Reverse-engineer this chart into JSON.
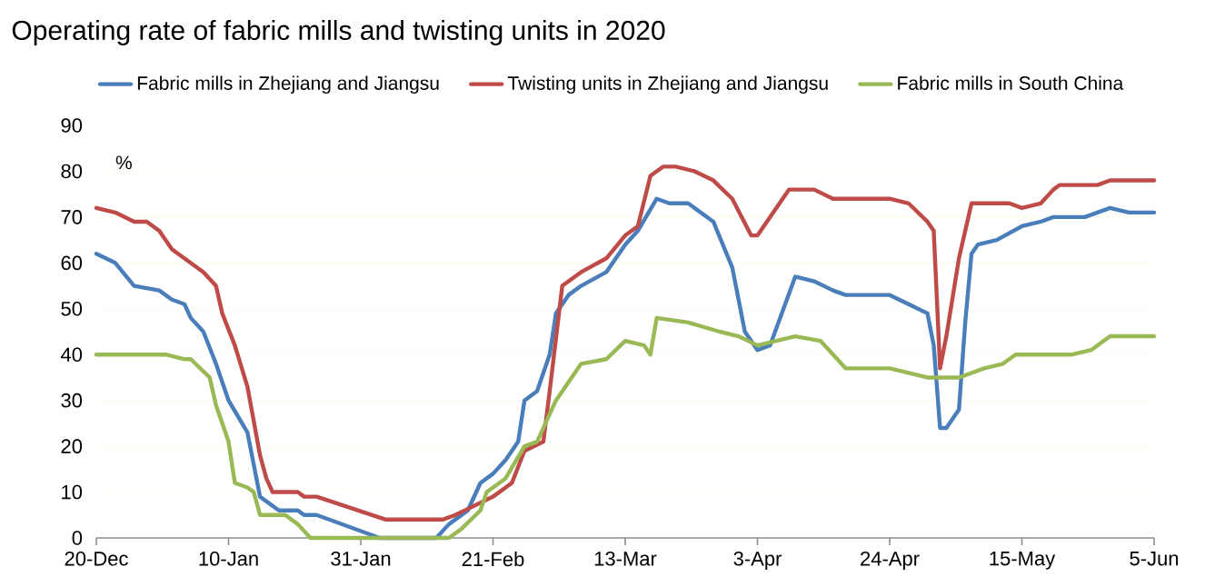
{
  "chart_data": {
    "type": "line",
    "title": "Operating rate of fabric mills and twisting units in 2020",
    "ylabel": "%",
    "grid": "y",
    "legend": "top",
    "xlim": [
      "2019-12-20",
      "2020-06-05"
    ],
    "xticks": [
      {
        "value": "2019-12-20",
        "label": "20-Dec"
      },
      {
        "value": "2020-01-10",
        "label": "10-Jan"
      },
      {
        "value": "2020-01-31",
        "label": "31-Jan"
      },
      {
        "value": "2020-02-21",
        "label": "21-Feb"
      },
      {
        "value": "2020-03-13",
        "label": "13-Mar"
      },
      {
        "value": "2020-04-03",
        "label": "3-Apr"
      },
      {
        "value": "2020-04-24",
        "label": "24-Apr"
      },
      {
        "value": "2020-05-15",
        "label": "15-May"
      },
      {
        "value": "2020-06-05",
        "label": "5-Jun"
      }
    ],
    "ylim": [
      0,
      90
    ],
    "yticks": [
      0,
      10,
      20,
      30,
      40,
      50,
      60,
      70,
      80,
      90
    ],
    "series": [
      {
        "name": "Fabric mills in Zhejiang and Jiangsu",
        "color": "#4a7ebb",
        "x": [
          "2019-12-20",
          "2019-12-23",
          "2019-12-26",
          "2019-12-30",
          "2020-01-01",
          "2020-01-03",
          "2020-01-04",
          "2020-01-06",
          "2020-01-08",
          "2020-01-10",
          "2020-01-13",
          "2020-01-15",
          "2020-01-17",
          "2020-01-18",
          "2020-01-21",
          "2020-01-22",
          "2020-01-24",
          "2020-02-03",
          "2020-02-12",
          "2020-02-14",
          "2020-02-17",
          "2020-02-19",
          "2020-02-21",
          "2020-02-23",
          "2020-02-25",
          "2020-02-26",
          "2020-02-28",
          "2020-03-01",
          "2020-03-02",
          "2020-03-04",
          "2020-03-06",
          "2020-03-10",
          "2020-03-13",
          "2020-03-15",
          "2020-03-18",
          "2020-03-20",
          "2020-03-23",
          "2020-03-27",
          "2020-03-30",
          "2020-04-01",
          "2020-04-03",
          "2020-04-05",
          "2020-04-09",
          "2020-04-12",
          "2020-04-15",
          "2020-04-17",
          "2020-04-24",
          "2020-04-27",
          "2020-04-30",
          "2020-05-01",
          "2020-05-02",
          "2020-05-03",
          "2020-05-05",
          "2020-05-06",
          "2020-05-07",
          "2020-05-08",
          "2020-05-11",
          "2020-05-15",
          "2020-05-18",
          "2020-05-20",
          "2020-05-25",
          "2020-05-27",
          "2020-05-29",
          "2020-06-01",
          "2020-06-05"
        ],
        "values": [
          62,
          60,
          55,
          54,
          52,
          51,
          48,
          45,
          38,
          30,
          23,
          9,
          7,
          6,
          6,
          5,
          5,
          0,
          0,
          3,
          6,
          12,
          14,
          17,
          21,
          30,
          32,
          40,
          49,
          53,
          55,
          58,
          64,
          67,
          74,
          73,
          73,
          69,
          59,
          45,
          41,
          42,
          57,
          56,
          54,
          53,
          53,
          51,
          49,
          42,
          24,
          24,
          28,
          47,
          62,
          64,
          65,
          68,
          69,
          70,
          70,
          71,
          72,
          71,
          71
        ]
      },
      {
        "name": "Twisting units in Zhejiang and Jiangsu",
        "color": "#be4b48",
        "x": [
          "2019-12-20",
          "2019-12-23",
          "2019-12-26",
          "2019-12-28",
          "2019-12-30",
          "2020-01-01",
          "2020-01-06",
          "2020-01-08",
          "2020-01-09",
          "2020-01-11",
          "2020-01-13",
          "2020-01-15",
          "2020-01-16",
          "2020-01-17",
          "2020-01-21",
          "2020-01-22",
          "2020-01-24",
          "2020-02-04",
          "2020-02-13",
          "2020-02-15",
          "2020-02-21",
          "2020-02-24",
          "2020-02-26",
          "2020-02-29",
          "2020-03-01",
          "2020-03-03",
          "2020-03-06",
          "2020-03-10",
          "2020-03-13",
          "2020-03-15",
          "2020-03-17",
          "2020-03-19",
          "2020-03-21",
          "2020-03-24",
          "2020-03-27",
          "2020-03-30",
          "2020-04-02",
          "2020-04-03",
          "2020-04-08",
          "2020-04-12",
          "2020-04-15",
          "2020-04-24",
          "2020-04-27",
          "2020-04-30",
          "2020-05-01",
          "2020-05-02",
          "2020-05-03",
          "2020-05-05",
          "2020-05-07",
          "2020-05-13",
          "2020-05-15",
          "2020-05-18",
          "2020-05-20",
          "2020-05-21",
          "2020-05-27",
          "2020-05-29",
          "2020-06-05"
        ],
        "values": [
          72,
          71,
          69,
          69,
          67,
          63,
          58,
          55,
          49,
          42,
          33,
          18,
          13,
          10,
          10,
          9,
          9,
          4,
          4,
          5,
          9,
          12,
          19,
          21,
          32,
          55,
          58,
          61,
          66,
          68,
          79,
          81,
          81,
          80,
          78,
          74,
          66,
          66,
          76,
          76,
          74,
          74,
          73,
          69,
          67,
          37,
          44,
          61,
          73,
          73,
          72,
          73,
          76,
          77,
          77,
          78,
          78
        ]
      },
      {
        "name": "Fabric mills in South China",
        "color": "#98b954",
        "x": [
          "2019-12-20",
          "2019-12-31",
          "2020-01-03",
          "2020-01-04",
          "2020-01-07",
          "2020-01-08",
          "2020-01-10",
          "2020-01-11",
          "2020-01-13",
          "2020-01-14",
          "2020-01-15",
          "2020-01-19",
          "2020-01-21",
          "2020-01-23",
          "2020-02-14",
          "2020-02-16",
          "2020-02-19",
          "2020-02-20",
          "2020-02-23",
          "2020-02-26",
          "2020-02-28",
          "2020-03-02",
          "2020-03-06",
          "2020-03-10",
          "2020-03-13",
          "2020-03-16",
          "2020-03-17",
          "2020-03-18",
          "2020-03-23",
          "2020-03-28",
          "2020-03-31",
          "2020-04-03",
          "2020-04-06",
          "2020-04-09",
          "2020-04-13",
          "2020-04-17",
          "2020-04-24",
          "2020-04-27",
          "2020-04-30",
          "2020-05-05",
          "2020-05-09",
          "2020-05-12",
          "2020-05-14",
          "2020-05-15",
          "2020-05-23",
          "2020-05-26",
          "2020-05-29",
          "2020-06-05"
        ],
        "values": [
          40,
          40,
          39,
          39,
          35,
          29,
          21,
          12,
          11,
          10,
          5,
          5,
          3,
          0,
          0,
          2,
          6,
          10,
          13,
          20,
          21,
          30,
          38,
          39,
          43,
          42,
          40,
          48,
          47,
          45,
          44,
          42,
          43,
          44,
          43,
          37,
          37,
          36,
          35,
          35,
          37,
          38,
          40,
          40,
          40,
          41,
          44,
          44
        ]
      }
    ]
  }
}
